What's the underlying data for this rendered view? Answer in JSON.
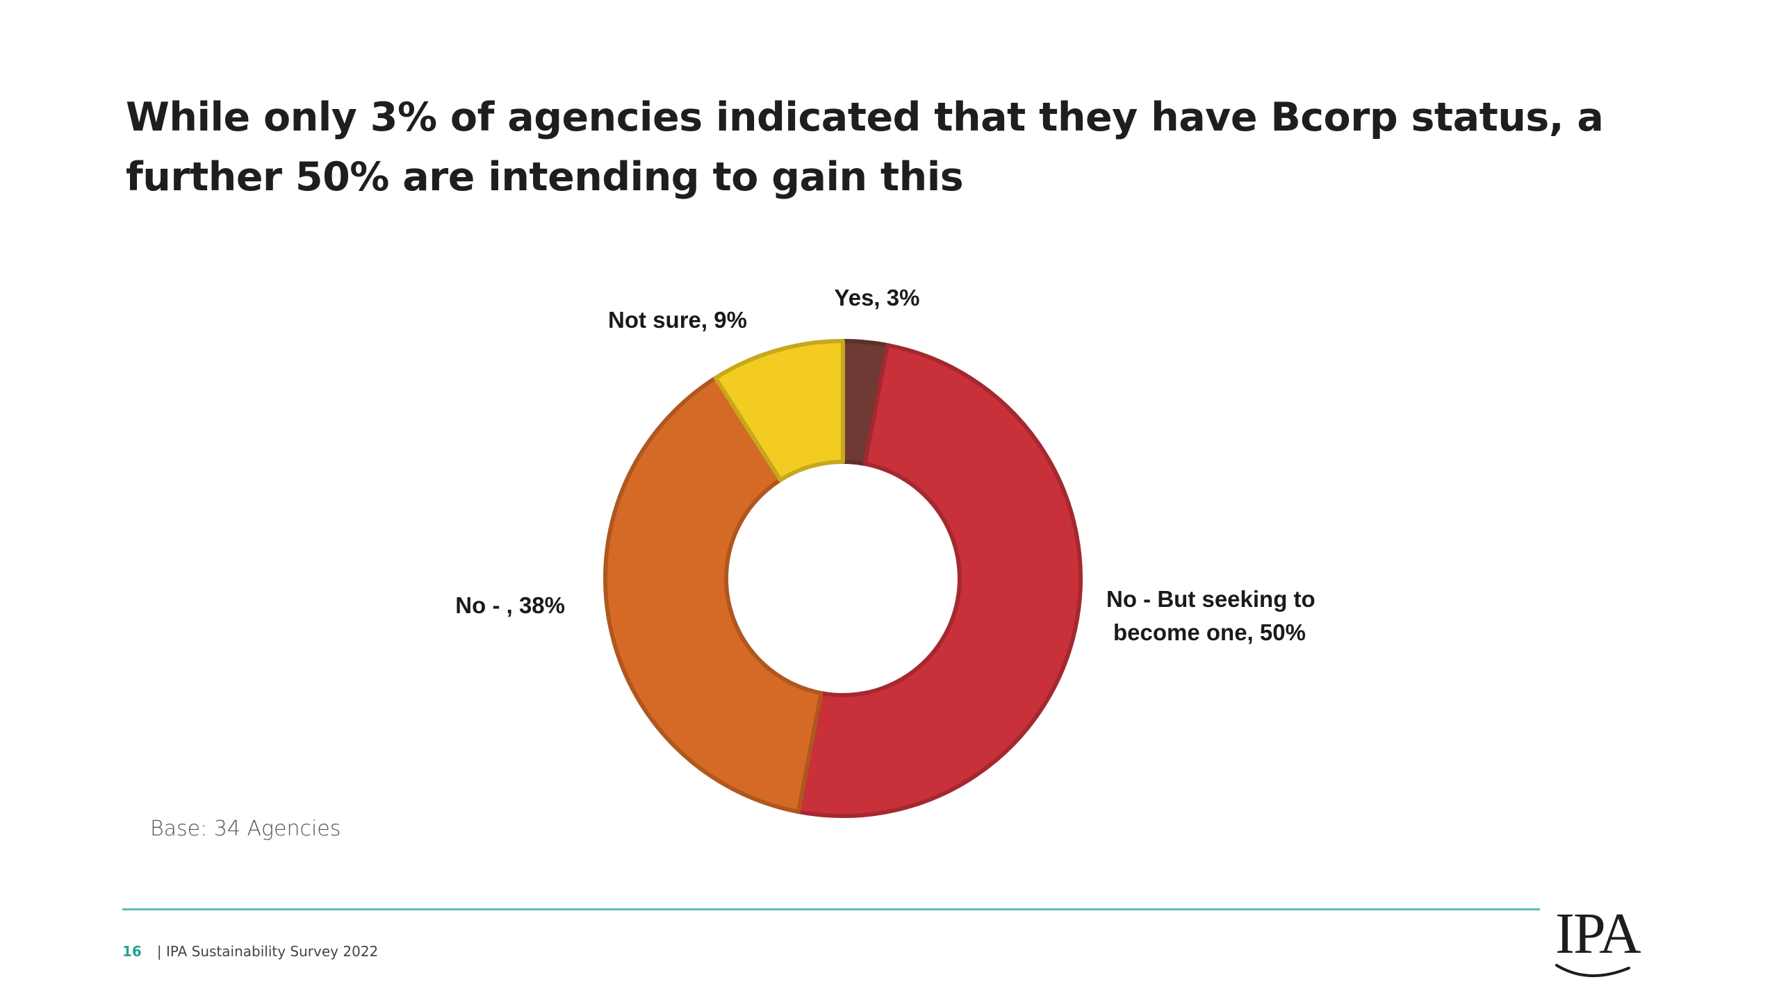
{
  "slide": {
    "title": "While only 3% of agencies indicated that they have Bcorp status, a further 50% are intending to gain this",
    "base_note": "Base: 34 Agencies",
    "page_number": "16",
    "footer_text": "| IPA Sustainability Survey 2022",
    "logo_text": "IPA"
  },
  "colors": {
    "accent_rule": "#5bbfb0",
    "page_number": "#2aa191"
  },
  "chart_data": {
    "type": "pie",
    "variant": "donut",
    "title": "",
    "slices": [
      {
        "label": "Yes, 3%",
        "category": "Yes",
        "value": 3,
        "color": "#6e3a33"
      },
      {
        "label": "No - But seeking to become one, 50%",
        "category": "No - But seeking to become one",
        "value": 50,
        "color": "#c8313a"
      },
      {
        "label": "No - , 38%",
        "category": "No - ",
        "value": 38,
        "color": "#d56a26"
      },
      {
        "label": "Not sure, 9%",
        "category": "Not sure",
        "value": 9,
        "color": "#f3cc22"
      }
    ],
    "label_lines": [
      [
        "Yes, 3%"
      ],
      [
        "No - But seeking to",
        "become one, 50%"
      ],
      [
        "No - , 38%"
      ],
      [
        "Not sure, 9%"
      ]
    ],
    "start_angle_deg": 0,
    "direction": "clockwise"
  }
}
